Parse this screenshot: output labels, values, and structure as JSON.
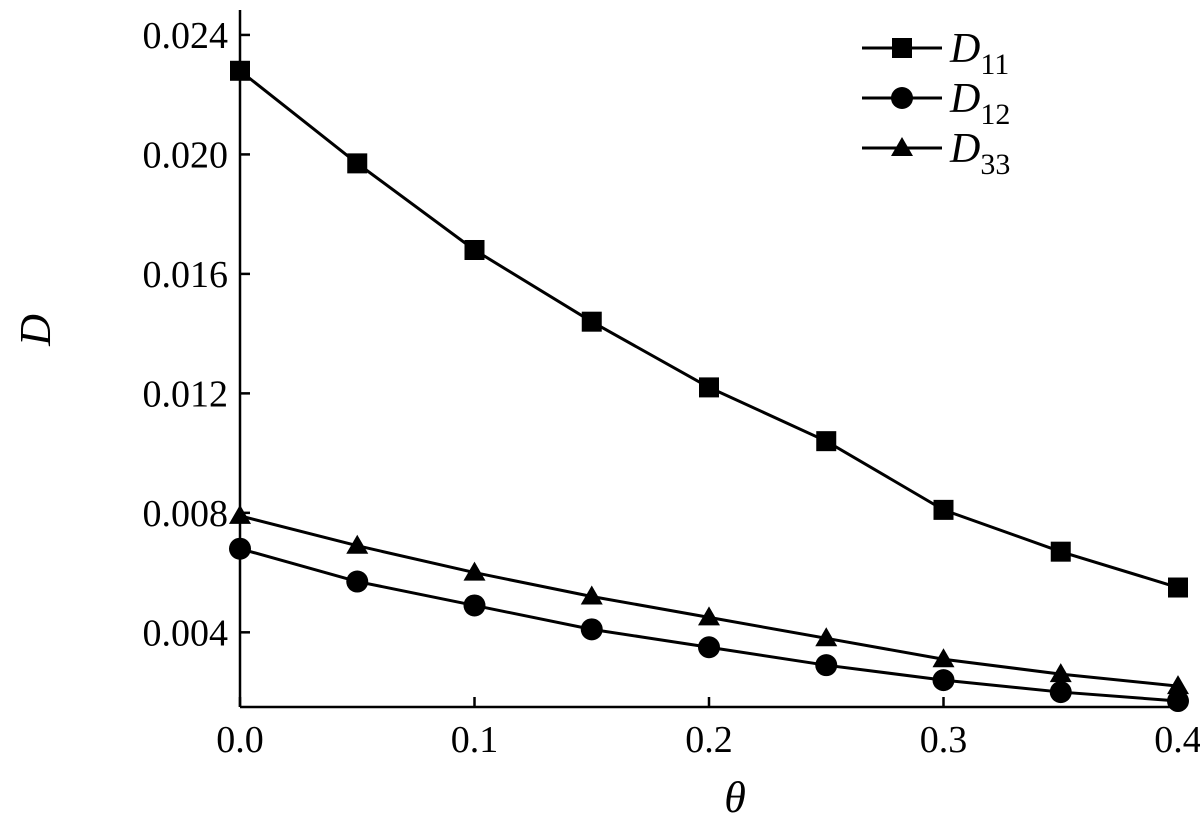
{
  "chart_data": {
    "type": "line",
    "xlabel": "θ",
    "ylabel": "D",
    "xlim": [
      0.0,
      0.4
    ],
    "ylim": [
      0.0,
      0.024
    ],
    "x_ticks": [
      "0.0",
      "0.1",
      "0.2",
      "0.3",
      "0.4"
    ],
    "y_ticks": [
      "0.004",
      "0.008",
      "0.012",
      "0.016",
      "0.020",
      "0.024"
    ],
    "grid": false,
    "legend_position": "top-right",
    "x": [
      0.0,
      0.05,
      0.1,
      0.15,
      0.2,
      0.25,
      0.3,
      0.35,
      0.4
    ],
    "series": [
      {
        "name": "D11",
        "label_main": "D",
        "label_sub": "11",
        "marker": "square",
        "values": [
          0.0228,
          0.0197,
          0.0168,
          0.0144,
          0.0122,
          0.0104,
          0.0081,
          0.0067,
          0.0055
        ]
      },
      {
        "name": "D12",
        "label_main": "D",
        "label_sub": "12",
        "marker": "circle",
        "values": [
          0.0068,
          0.0057,
          0.0049,
          0.0041,
          0.0035,
          0.0029,
          0.0024,
          0.002,
          0.0017
        ]
      },
      {
        "name": "D33",
        "label_main": "D",
        "label_sub": "33",
        "marker": "triangle",
        "values": [
          0.0079,
          0.0069,
          0.006,
          0.0052,
          0.0045,
          0.0038,
          0.0031,
          0.0026,
          0.0022
        ]
      }
    ],
    "colors": {
      "line": "#000000",
      "marker": "#000000"
    }
  }
}
